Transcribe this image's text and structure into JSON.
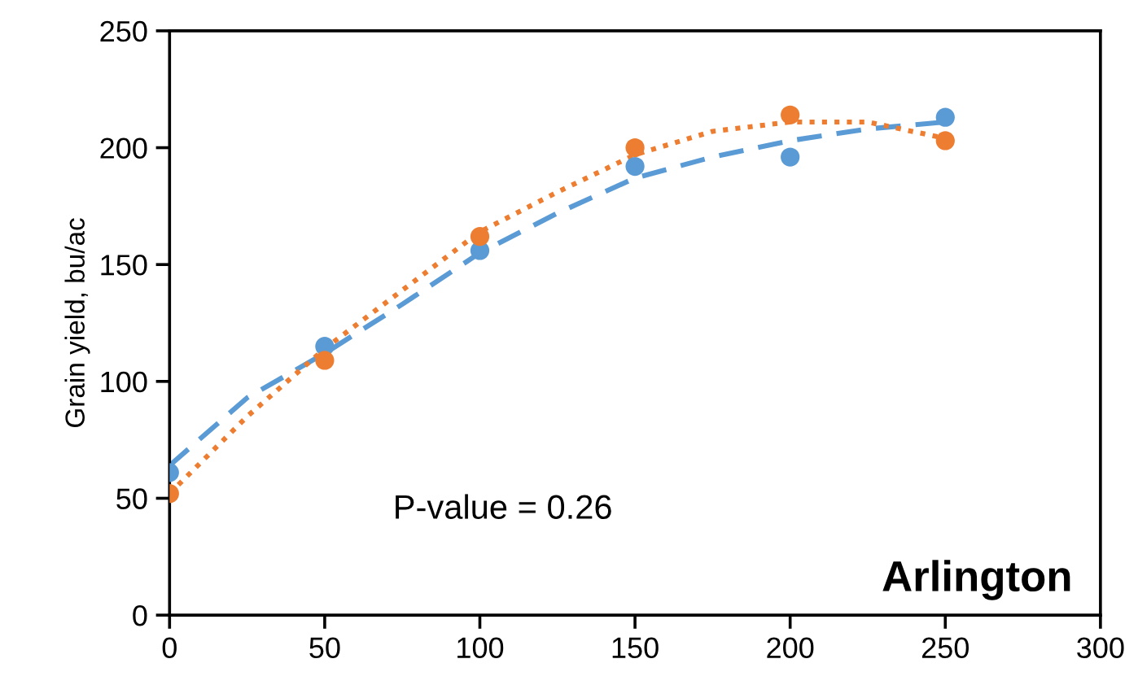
{
  "chart_data": {
    "type": "scatter",
    "ylabel": "Grain yield, bu/ac",
    "annotations": [
      "P-value = 0.26",
      "Arlington"
    ],
    "xlim": [
      0,
      300
    ],
    "xticks": [
      0,
      50,
      100,
      150,
      200,
      250,
      300
    ],
    "ylim": [
      0,
      250
    ],
    "yticks": [
      0,
      50,
      100,
      150,
      200,
      250
    ],
    "grid": false,
    "legend": false,
    "series": [
      {
        "color": "#5b9bd5",
        "marker": "circle",
        "x": [
          0,
          50,
          100,
          150,
          200,
          250
        ],
        "values": [
          61,
          115,
          156,
          192,
          196,
          213
        ]
      },
      {
        "color": "#ed7d31",
        "marker": "circle",
        "x": [
          0,
          50,
          100,
          150,
          200,
          250
        ],
        "values": [
          52,
          109,
          162,
          200,
          214,
          203
        ]
      },
      {
        "type": "line",
        "color": "#5b9bd5",
        "line_style": "dashed",
        "x": [
          0,
          25,
          50,
          75,
          100,
          125,
          150,
          175,
          200,
          225,
          250
        ],
        "values": [
          64,
          93,
          112,
          133,
          155,
          172,
          187,
          196,
          203,
          208,
          211
        ]
      },
      {
        "type": "line",
        "color": "#ed7d31",
        "line_style": "dotted",
        "x": [
          0,
          25,
          50,
          75,
          100,
          125,
          150,
          175,
          200,
          225,
          250
        ],
        "values": [
          52,
          85,
          114,
          139,
          164,
          181,
          197,
          207,
          211,
          211,
          204
        ]
      }
    ]
  }
}
